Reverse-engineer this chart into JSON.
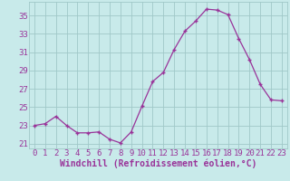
{
  "x": [
    0,
    1,
    2,
    3,
    4,
    5,
    6,
    7,
    8,
    9,
    10,
    11,
    12,
    13,
    14,
    15,
    16,
    17,
    18,
    19,
    20,
    21,
    22,
    23
  ],
  "y": [
    23.0,
    23.2,
    24.0,
    23.0,
    22.2,
    22.2,
    22.3,
    21.5,
    21.1,
    22.3,
    25.1,
    27.8,
    28.8,
    31.3,
    33.3,
    34.4,
    35.7,
    35.6,
    35.1,
    32.5,
    30.2,
    27.5,
    25.8,
    25.7
  ],
  "line_color": "#993399",
  "marker": "+",
  "bg_color": "#c8eaea",
  "grid_color": "#a0c8c8",
  "xlabel": "Windchill (Refroidissement éolien,°C)",
  "xlabel_color": "#993399",
  "tick_color": "#993399",
  "ylim": [
    20.5,
    36.5
  ],
  "yticks": [
    21,
    23,
    25,
    27,
    29,
    31,
    33,
    35
  ],
  "xticks": [
    0,
    1,
    2,
    3,
    4,
    5,
    6,
    7,
    8,
    9,
    10,
    11,
    12,
    13,
    14,
    15,
    16,
    17,
    18,
    19,
    20,
    21,
    22,
    23
  ],
  "label_fontsize": 7.0,
  "tick_fontsize": 6.5,
  "xlim": [
    -0.5,
    23.5
  ]
}
